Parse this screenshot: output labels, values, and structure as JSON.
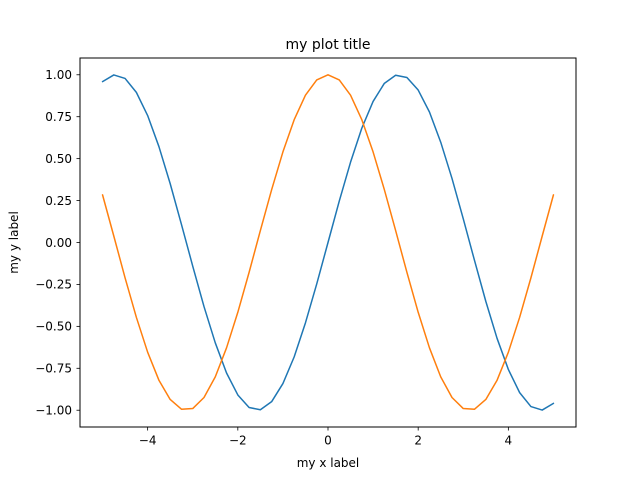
{
  "chart_data": {
    "type": "line",
    "title": "my plot title",
    "xlabel": "my x label",
    "ylabel": "my y label",
    "xlim": [
      -5.5,
      5.5
    ],
    "ylim": [
      -1.1,
      1.1
    ],
    "xticks": [
      {
        "value": -4,
        "label": "−4"
      },
      {
        "value": -2,
        "label": "−2"
      },
      {
        "value": 0,
        "label": "0"
      },
      {
        "value": 2,
        "label": "2"
      },
      {
        "value": 4,
        "label": "4"
      }
    ],
    "yticks": [
      {
        "value": -1.0,
        "label": "−1.00"
      },
      {
        "value": -0.75,
        "label": "−0.75"
      },
      {
        "value": -0.5,
        "label": "−0.50"
      },
      {
        "value": -0.25,
        "label": "−0.25"
      },
      {
        "value": 0.0,
        "label": "0.00"
      },
      {
        "value": 0.25,
        "label": "0.25"
      },
      {
        "value": 0.5,
        "label": "0.50"
      },
      {
        "value": 0.75,
        "label": "0.75"
      },
      {
        "value": 1.0,
        "label": "1.00"
      }
    ],
    "grid": false,
    "legend": "none",
    "series": [
      {
        "color": "#1f77b4",
        "x": [
          -5.0,
          -4.75,
          -4.5,
          -4.25,
          -4.0,
          -3.75,
          -3.5,
          -3.25,
          -3.0,
          -2.75,
          -2.5,
          -2.25,
          -2.0,
          -1.75,
          -1.5,
          -1.25,
          -1.0,
          -0.75,
          -0.5,
          -0.25,
          0.0,
          0.25,
          0.5,
          0.75,
          1.0,
          1.25,
          1.5,
          1.75,
          2.0,
          2.25,
          2.5,
          2.75,
          3.0,
          3.25,
          3.5,
          3.75,
          4.0,
          4.25,
          4.5,
          4.75,
          5.0
        ],
        "y": [
          0.959,
          0.999,
          0.978,
          0.895,
          0.757,
          0.572,
          0.351,
          0.108,
          -0.141,
          -0.382,
          -0.598,
          -0.778,
          -0.909,
          -0.984,
          -0.997,
          -0.949,
          -0.841,
          -0.682,
          -0.479,
          -0.247,
          0.0,
          0.247,
          0.479,
          0.682,
          0.841,
          0.949,
          0.997,
          0.984,
          0.909,
          0.778,
          0.598,
          0.382,
          0.141,
          -0.108,
          -0.351,
          -0.572,
          -0.757,
          -0.895,
          -0.978,
          -0.999,
          -0.959
        ]
      },
      {
        "color": "#ff7f0e",
        "x": [
          -5.0,
          -4.75,
          -4.5,
          -4.25,
          -4.0,
          -3.75,
          -3.5,
          -3.25,
          -3.0,
          -2.75,
          -2.5,
          -2.25,
          -2.0,
          -1.75,
          -1.5,
          -1.25,
          -1.0,
          -0.75,
          -0.5,
          -0.25,
          0.0,
          0.25,
          0.5,
          0.75,
          1.0,
          1.25,
          1.5,
          1.75,
          2.0,
          2.25,
          2.5,
          2.75,
          3.0,
          3.25,
          3.5,
          3.75,
          4.0,
          4.25,
          4.5,
          4.75,
          5.0
        ],
        "y": [
          0.284,
          0.038,
          -0.211,
          -0.446,
          -0.654,
          -0.821,
          -0.936,
          -0.994,
          -0.99,
          -0.924,
          -0.801,
          -0.628,
          -0.416,
          -0.178,
          0.071,
          0.315,
          0.54,
          0.732,
          0.878,
          0.969,
          1.0,
          0.969,
          0.878,
          0.732,
          0.54,
          0.315,
          0.071,
          -0.178,
          -0.416,
          -0.628,
          -0.801,
          -0.924,
          -0.99,
          -0.994,
          -0.936,
          -0.821,
          -0.654,
          -0.446,
          -0.211,
          0.038,
          0.284
        ]
      }
    ]
  }
}
